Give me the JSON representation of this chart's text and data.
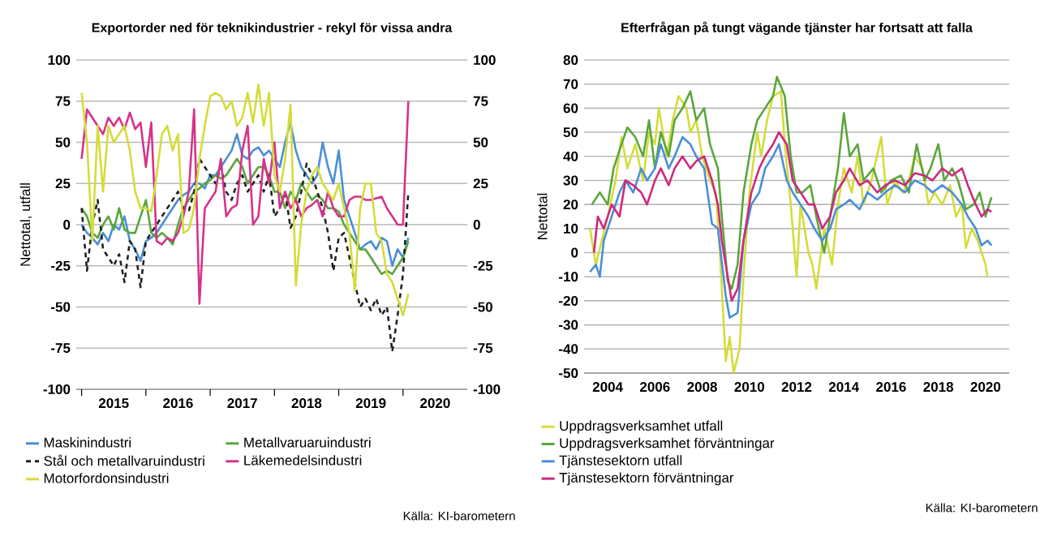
{
  "chart_data": [
    {
      "type": "line",
      "title": "Exportorder ned för teknikindustrier - rekyl för vissa andra",
      "ylabel": "Nettotal, utfall",
      "x": [
        "2015-01",
        "2015-02",
        "2015-03",
        "2015-04",
        "2015-05",
        "2015-06",
        "2015-07",
        "2015-08",
        "2015-09",
        "2015-10",
        "2015-11",
        "2015-12",
        "2016-01",
        "2016-02",
        "2016-03",
        "2016-04",
        "2016-05",
        "2016-06",
        "2016-07",
        "2016-08",
        "2016-09",
        "2016-10",
        "2016-11",
        "2016-12",
        "2017-01",
        "2017-02",
        "2017-03",
        "2017-04",
        "2017-05",
        "2017-06",
        "2017-07",
        "2017-08",
        "2017-09",
        "2017-10",
        "2017-11",
        "2017-12",
        "2018-01",
        "2018-02",
        "2018-03",
        "2018-04",
        "2018-05",
        "2018-06",
        "2018-07",
        "2018-08",
        "2018-09",
        "2018-10",
        "2018-11",
        "2018-12",
        "2019-01",
        "2019-02",
        "2019-03",
        "2019-04",
        "2019-05",
        "2019-06",
        "2019-07",
        "2019-08",
        "2019-09",
        "2019-10",
        "2019-11",
        "2019-12",
        "2020-01",
        "2020-02"
      ],
      "series": [
        {
          "name": "Maskinindustri",
          "color": "#4a8fd6",
          "values": [
            0,
            -5,
            -8,
            -12,
            -5,
            -10,
            0,
            -3,
            5,
            -10,
            -15,
            -22,
            -10,
            -8,
            -5,
            0,
            5,
            10,
            15,
            18,
            20,
            25,
            25,
            22,
            30,
            30,
            35,
            40,
            45,
            55,
            42,
            40,
            45,
            47,
            42,
            45,
            40,
            35,
            50,
            62,
            45,
            35,
            30,
            25,
            30,
            50,
            35,
            25,
            45,
            15,
            5,
            -5,
            -15,
            -12,
            -10,
            -15,
            -8,
            -10,
            -25,
            -15,
            -20,
            -8
          ]
        },
        {
          "name": "Metallvaruaruindustri",
          "color": "#5aa63c",
          "values": [
            10,
            5,
            -5,
            -8,
            0,
            5,
            -3,
            10,
            -3,
            -5,
            -5,
            5,
            15,
            -5,
            -8,
            -5,
            -8,
            -12,
            0,
            10,
            15,
            20,
            22,
            25,
            27,
            30,
            28,
            30,
            35,
            40,
            35,
            25,
            30,
            35,
            35,
            30,
            20,
            20,
            10,
            20,
            15,
            25,
            20,
            15,
            18,
            15,
            10,
            10,
            8,
            0,
            -5,
            -10,
            -15,
            -15,
            -20,
            -25,
            -30,
            -28,
            -30,
            -25,
            -20,
            -10
          ]
        },
        {
          "name": "Stål och metallvaruindustri",
          "color": "#222222",
          "line_style": "dashed",
          "values": [
            10,
            -28,
            0,
            15,
            -15,
            -20,
            -25,
            -18,
            -35,
            -10,
            -15,
            -38,
            -10,
            -5,
            0,
            5,
            10,
            15,
            20,
            10,
            8,
            20,
            40,
            35,
            30,
            25,
            35,
            20,
            15,
            25,
            30,
            20,
            25,
            30,
            20,
            30,
            5,
            10,
            20,
            -2,
            5,
            20,
            37,
            30,
            20,
            10,
            -5,
            -28,
            -8,
            -5,
            -20,
            -35,
            -50,
            -45,
            -52,
            -45,
            -55,
            -50,
            -77,
            -55,
            -30,
            20
          ]
        },
        {
          "name": "Läkemedelsindustri",
          "color": "#d6338a",
          "values": [
            40,
            70,
            65,
            60,
            55,
            65,
            60,
            65,
            58,
            68,
            58,
            62,
            35,
            62,
            -10,
            -12,
            -8,
            -10,
            -5,
            5,
            20,
            70,
            -48,
            10,
            15,
            20,
            40,
            5,
            10,
            12,
            45,
            60,
            0,
            5,
            40,
            25,
            50,
            10,
            20,
            10,
            15,
            5,
            10,
            12,
            15,
            5,
            20,
            10,
            5,
            5,
            15,
            17,
            17,
            15,
            15,
            16,
            17,
            10,
            5,
            0,
            0,
            75
          ]
        },
        {
          "name": "Motorfordonsindustri",
          "color": "#d4dc3a",
          "values": [
            80,
            50,
            -10,
            60,
            20,
            60,
            50,
            55,
            60,
            45,
            20,
            10,
            10,
            8,
            30,
            55,
            60,
            45,
            55,
            -5,
            -3,
            10,
            40,
            60,
            78,
            80,
            78,
            70,
            75,
            60,
            65,
            80,
            62,
            85,
            60,
            80,
            30,
            20,
            40,
            73,
            -37,
            0,
            20,
            30,
            35,
            25,
            20,
            15,
            25,
            10,
            -5,
            -40,
            10,
            25,
            25,
            -5,
            -10,
            -30,
            -35,
            -45,
            -55,
            -42
          ]
        }
      ],
      "xlim": [
        "2014-12",
        "2021-01"
      ],
      "xticks": [
        {
          "value": "2015-01",
          "label": null
        },
        {
          "value": "2015-07",
          "label": "2015"
        },
        {
          "value": "2016-01",
          "label": null
        },
        {
          "value": "2016-07",
          "label": "2016"
        },
        {
          "value": "2017-01",
          "label": null
        },
        {
          "value": "2017-07",
          "label": "2017"
        },
        {
          "value": "2018-01",
          "label": null
        },
        {
          "value": "2018-07",
          "label": "2018"
        },
        {
          "value": "2019-01",
          "label": null
        },
        {
          "value": "2019-07",
          "label": "2019"
        },
        {
          "value": "2020-01",
          "label": null
        },
        {
          "value": "2020-07",
          "label": "2020"
        }
      ],
      "ylim": [
        -100,
        100
      ],
      "yticks": [
        -100,
        -75,
        -50,
        -25,
        0,
        25,
        50,
        75,
        100
      ],
      "y2lim": [
        -100,
        100
      ],
      "y2ticks": [
        -100,
        -75,
        -50,
        -25,
        0,
        25,
        50,
        75,
        100
      ],
      "grid": "y",
      "legend": "bottom",
      "annotations": [
        "Källa: KI-barometern"
      ]
    },
    {
      "type": "line",
      "title": "Efterfrågan på tungt vägande tjänster har fortsatt att falla",
      "ylabel": "Nettotal",
      "series": [
        {
          "name": "Uppdragsverksamhet utfall",
          "color": "#d4dc3a",
          "x": [
            "2003-04",
            "2003-07",
            "2003-10",
            "2004-01",
            "2004-05",
            "2004-08",
            "2004-11",
            "2005-03",
            "2005-07",
            "2005-10",
            "2006-01",
            "2006-03",
            "2006-07",
            "2006-10",
            "2007-01",
            "2007-05",
            "2007-07",
            "2007-10",
            "2008-01",
            "2008-05",
            "2008-08",
            "2008-10",
            "2009-01",
            "2009-03",
            "2009-05",
            "2009-08",
            "2009-10",
            "2010-01",
            "2010-05",
            "2010-07",
            "2010-10",
            "2011-01",
            "2011-05",
            "2011-07",
            "2011-10",
            "2012-01",
            "2012-03",
            "2012-07",
            "2012-09",
            "2012-11",
            "2013-03",
            "2013-07",
            "2013-10",
            "2014-01",
            "2014-05",
            "2014-08",
            "2014-11",
            "2015-03",
            "2015-08",
            "2015-11",
            "2016-03",
            "2016-07",
            "2016-10",
            "2017-01",
            "2017-05",
            "2017-08",
            "2017-11",
            "2018-03",
            "2018-07",
            "2018-10",
            "2019-01",
            "2019-03",
            "2019-06",
            "2019-09",
            "2020-01",
            "2020-02"
          ],
          "values": [
            10,
            -5,
            5,
            15,
            30,
            48,
            35,
            45,
            30,
            50,
            45,
            60,
            40,
            55,
            65,
            60,
            50,
            55,
            40,
            30,
            25,
            0,
            -45,
            -35,
            -50,
            -40,
            -10,
            25,
            50,
            40,
            55,
            65,
            67,
            45,
            20,
            -10,
            20,
            0,
            -5,
            -15,
            10,
            -5,
            20,
            35,
            25,
            40,
            20,
            30,
            48,
            20,
            30,
            25,
            30,
            40,
            35,
            20,
            25,
            20,
            28,
            15,
            20,
            2,
            10,
            5,
            -5,
            -10
          ]
        },
        {
          "name": "Uppdragsverksamhet förväntningar",
          "color": "#5aa63c",
          "x": [
            "2003-05",
            "2003-09",
            "2004-01",
            "2004-04",
            "2004-08",
            "2004-11",
            "2005-03",
            "2005-07",
            "2005-10",
            "2006-01",
            "2006-04",
            "2006-08",
            "2006-11",
            "2007-03",
            "2007-07",
            "2007-10",
            "2008-02",
            "2008-05",
            "2008-09",
            "2008-11",
            "2009-02",
            "2009-04",
            "2009-07",
            "2009-10",
            "2010-02",
            "2010-05",
            "2010-09",
            "2011-01",
            "2011-03",
            "2011-07",
            "2011-10",
            "2012-01",
            "2012-04",
            "2012-08",
            "2012-11",
            "2013-03",
            "2013-07",
            "2013-10",
            "2014-01",
            "2014-04",
            "2014-08",
            "2014-11",
            "2015-04",
            "2015-08",
            "2016-01",
            "2016-06",
            "2016-10",
            "2017-02",
            "2017-06",
            "2017-09",
            "2018-01",
            "2018-04",
            "2018-08",
            "2018-11",
            "2019-03",
            "2019-07",
            "2019-10",
            "2020-01",
            "2020-04"
          ],
          "values": [
            20,
            25,
            20,
            35,
            45,
            52,
            48,
            40,
            55,
            35,
            50,
            40,
            55,
            60,
            67,
            55,
            60,
            45,
            35,
            15,
            -12,
            -15,
            -5,
            25,
            45,
            55,
            60,
            65,
            73,
            65,
            40,
            25,
            25,
            28,
            15,
            0,
            20,
            35,
            58,
            40,
            45,
            30,
            35,
            25,
            30,
            32,
            25,
            45,
            30,
            35,
            45,
            30,
            35,
            30,
            18,
            20,
            25,
            15,
            23
          ]
        },
        {
          "name": "Tjänstesektorn utfall",
          "color": "#4a8fd6",
          "x": [
            "2003-04",
            "2003-07",
            "2003-09",
            "2003-11",
            "2004-03",
            "2004-07",
            "2004-10",
            "2005-02",
            "2005-06",
            "2005-09",
            "2006-01",
            "2006-04",
            "2006-08",
            "2006-11",
            "2007-03",
            "2007-07",
            "2007-10",
            "2008-02",
            "2008-06",
            "2008-09",
            "2009-01",
            "2009-03",
            "2009-07",
            "2009-10",
            "2010-02",
            "2010-06",
            "2010-09",
            "2011-01",
            "2011-04",
            "2011-08",
            "2011-11",
            "2012-03",
            "2012-07",
            "2012-10",
            "2013-02",
            "2013-06",
            "2013-09",
            "2014-01",
            "2014-04",
            "2014-09",
            "2015-01",
            "2015-06",
            "2015-10",
            "2016-03",
            "2016-08",
            "2017-01",
            "2017-06",
            "2017-10",
            "2018-03",
            "2018-08",
            "2019-01",
            "2019-04",
            "2019-08",
            "2019-11",
            "2020-02",
            "2020-04"
          ],
          "values": [
            -8,
            -5,
            -10,
            5,
            15,
            25,
            30,
            25,
            35,
            30,
            35,
            45,
            35,
            40,
            48,
            45,
            40,
            35,
            12,
            10,
            -18,
            -27,
            -25,
            5,
            20,
            25,
            35,
            40,
            45,
            30,
            25,
            20,
            15,
            10,
            5,
            10,
            18,
            20,
            22,
            18,
            25,
            22,
            25,
            28,
            25,
            30,
            28,
            25,
            28,
            25,
            20,
            15,
            10,
            3,
            5,
            3
          ]
        },
        {
          "name": "Tjänstesektorn förväntningar",
          "color": "#cc2a7e",
          "x": [
            "2003-06",
            "2003-08",
            "2003-11",
            "2004-03",
            "2004-07",
            "2004-10",
            "2005-02",
            "2005-06",
            "2005-09",
            "2006-01",
            "2006-04",
            "2006-08",
            "2006-11",
            "2007-03",
            "2007-07",
            "2007-10",
            "2008-02",
            "2008-06",
            "2008-09",
            "2008-11",
            "2009-02",
            "2009-04",
            "2009-07",
            "2009-10",
            "2010-02",
            "2010-06",
            "2010-09",
            "2011-01",
            "2011-04",
            "2011-08",
            "2011-11",
            "2012-03",
            "2012-07",
            "2012-10",
            "2013-02",
            "2013-06",
            "2013-09",
            "2014-01",
            "2014-04",
            "2014-09",
            "2015-01",
            "2015-06",
            "2015-10",
            "2016-03",
            "2016-08",
            "2017-01",
            "2017-06",
            "2017-10",
            "2018-03",
            "2018-08",
            "2019-01",
            "2019-04",
            "2019-08",
            "2019-11",
            "2020-02",
            "2020-04"
          ],
          "values": [
            0,
            15,
            10,
            20,
            15,
            30,
            28,
            25,
            20,
            30,
            35,
            28,
            35,
            40,
            35,
            38,
            40,
            30,
            20,
            5,
            -10,
            -20,
            -15,
            5,
            25,
            35,
            40,
            45,
            50,
            45,
            30,
            25,
            20,
            20,
            10,
            15,
            25,
            30,
            35,
            28,
            30,
            25,
            28,
            30,
            28,
            33,
            32,
            30,
            35,
            32,
            35,
            28,
            20,
            15,
            18,
            17
          ]
        }
      ],
      "xlim": [
        "2003",
        "2021"
      ],
      "xticks": [
        {
          "value": "2004",
          "label": "2004"
        },
        {
          "value": "2006",
          "label": "2006"
        },
        {
          "value": "2008",
          "label": "2008"
        },
        {
          "value": "2010",
          "label": "2010"
        },
        {
          "value": "2012",
          "label": "2012"
        },
        {
          "value": "2014",
          "label": "2014"
        },
        {
          "value": "2016",
          "label": "2016"
        },
        {
          "value": "2018",
          "label": "2018"
        },
        {
          "value": "2020",
          "label": "2020"
        }
      ],
      "ylim": [
        -50,
        80
      ],
      "yticks": [
        -50,
        -40,
        -30,
        -20,
        -10,
        0,
        10,
        20,
        30,
        40,
        50,
        60,
        70,
        80
      ],
      "grid": "y",
      "legend": "bottom",
      "annotations": [
        "Källa: KI-barometern"
      ]
    }
  ]
}
